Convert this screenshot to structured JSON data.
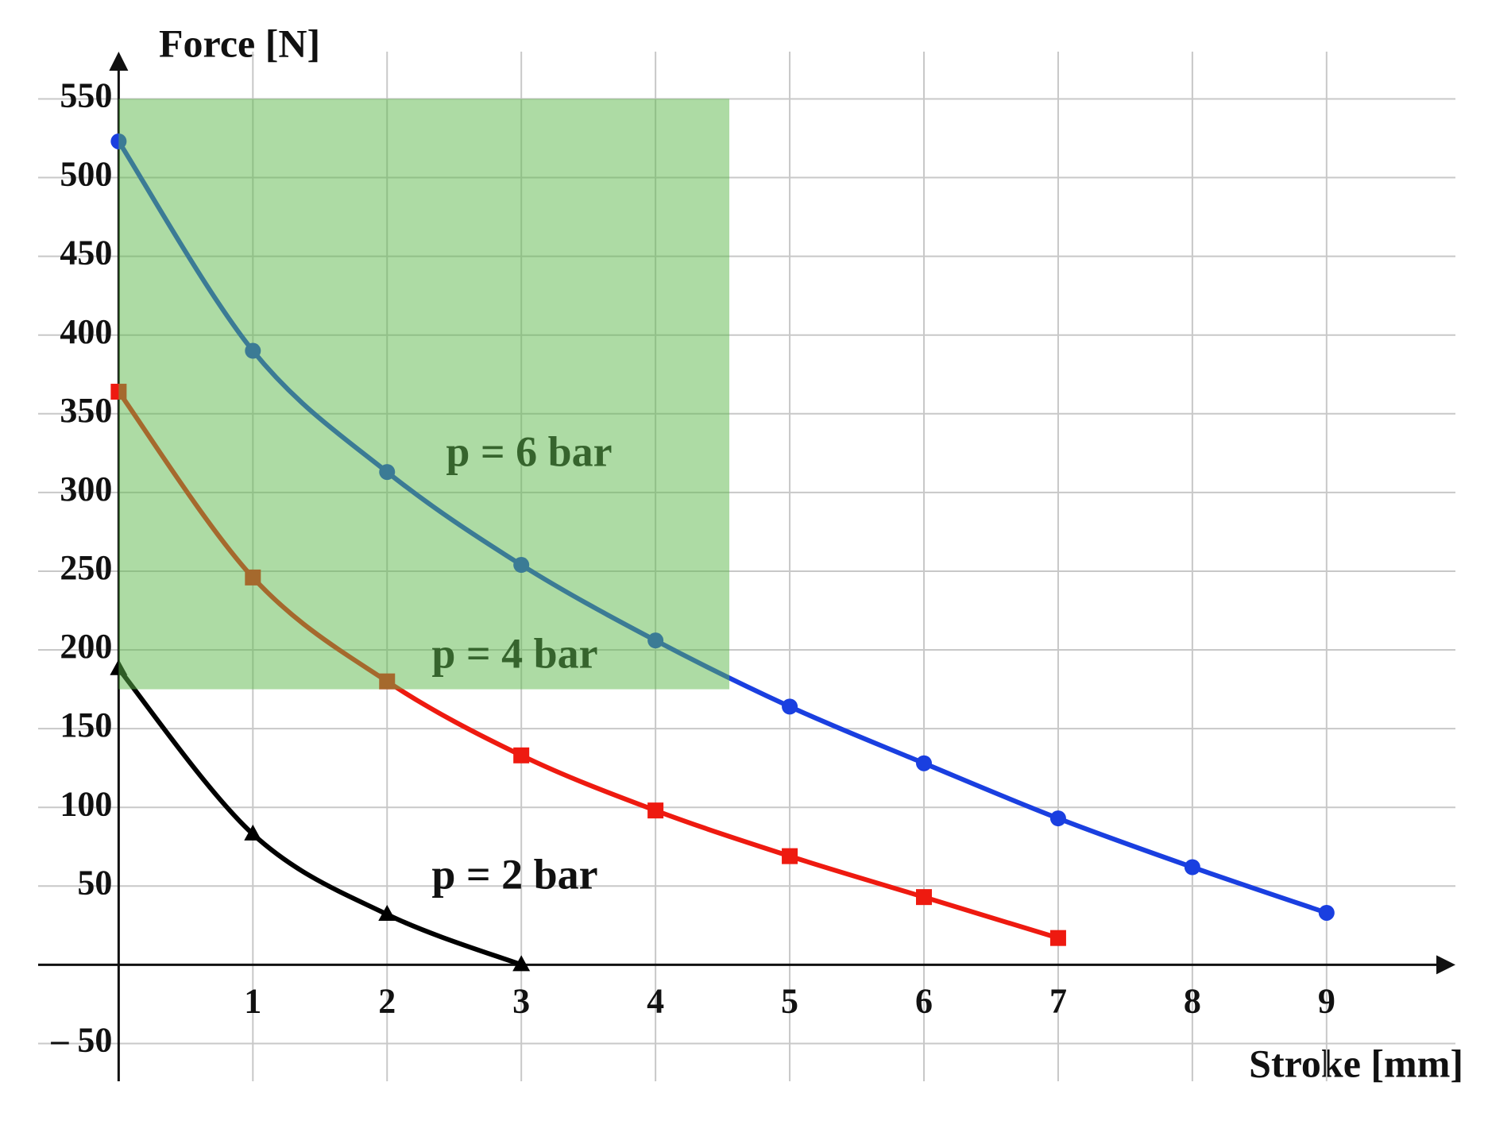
{
  "chart_data": {
    "type": "line",
    "x_label": "Stroke [mm]",
    "y_label": "Force [N]",
    "xlim": [
      -0.6,
      9.96
    ],
    "ylim": [
      -74,
      580
    ],
    "xticks": [
      1,
      2,
      3,
      4,
      5,
      6,
      7,
      8,
      9
    ],
    "yticks": [
      {
        "value": -50,
        "label": "– 50"
      },
      50,
      100,
      150,
      200,
      250,
      300,
      350,
      400,
      450,
      500,
      550
    ],
    "grid": true,
    "highlight_region": {
      "x": [
        0,
        4.55
      ],
      "y": [
        175,
        550
      ],
      "color": "#5cb84a"
    },
    "series": [
      {
        "name": "p = 6 bar",
        "color": "#1a3fe0",
        "marker": "circle",
        "x": [
          0,
          1,
          2,
          3,
          4,
          5,
          6,
          7,
          8,
          9
        ],
        "values": [
          523,
          390,
          313,
          254,
          206,
          164,
          128,
          93,
          62,
          33
        ]
      },
      {
        "name": "p = 4 bar",
        "color": "#ee1a10",
        "marker": "square",
        "x": [
          0,
          1,
          2,
          3,
          4,
          5,
          6,
          7
        ],
        "values": [
          364,
          246,
          180,
          133,
          98,
          69,
          43,
          17
        ]
      },
      {
        "name": "p = 2 bar",
        "color": "#000000",
        "marker": "triangle",
        "x": [
          0,
          1,
          2,
          3
        ],
        "values": [
          188,
          83,
          32,
          0
        ]
      }
    ]
  }
}
